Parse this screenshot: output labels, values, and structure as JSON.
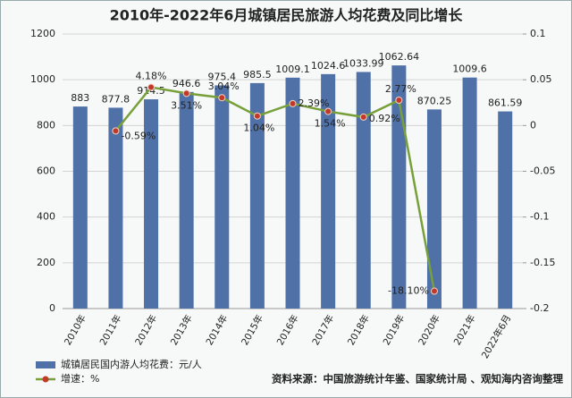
{
  "chart_data": {
    "type": "bar",
    "title": "2010年-2022年6月城镇居民旅游人均花费及同比增长",
    "categories": [
      "2010年",
      "2011年",
      "2012年",
      "2013年",
      "2014年",
      "2015年",
      "2016年",
      "2017年",
      "2018年",
      "2019年",
      "2020年",
      "2021年",
      "2022年6月"
    ],
    "series": [
      {
        "name": "城镇居民国内游人均花费：元/人",
        "type": "bar",
        "color": "#4f71a8",
        "values": [
          883,
          877.8,
          914.5,
          946.6,
          975.4,
          985.5,
          1009.1,
          1024.6,
          1033.99,
          1062.64,
          870.25,
          1009.6,
          861.59
        ]
      },
      {
        "name": "增速：%",
        "type": "line",
        "axis": "y2",
        "color": "#78a03a",
        "marker_color": "#c0392b",
        "values": [
          null,
          -0.0059,
          0.0418,
          0.0351,
          0.0304,
          0.0104,
          0.0239,
          0.0154,
          0.0092,
          0.0277,
          -0.181,
          null,
          null
        ],
        "value_labels": [
          null,
          "-0.59%",
          "4.18%",
          "3.51%",
          "3.04%",
          "1.04%",
          "2.39%",
          "1.54%",
          "0.92%",
          "2.77%",
          "-18.10%",
          null,
          null
        ]
      }
    ],
    "ylim": [
      0,
      1200
    ],
    "yticks": [
      0,
      200,
      400,
      600,
      800,
      1000,
      1200
    ],
    "y2lim": [
      -0.2,
      0.1
    ],
    "y2ticks": [
      -0.2,
      -0.15,
      -0.1,
      -0.05,
      0,
      0.05,
      0.1
    ],
    "grid": true,
    "legend": "bottom-left",
    "source": "资料来源：中国旅游统计年鉴、国家统计局 、观知海内咨询整理"
  }
}
